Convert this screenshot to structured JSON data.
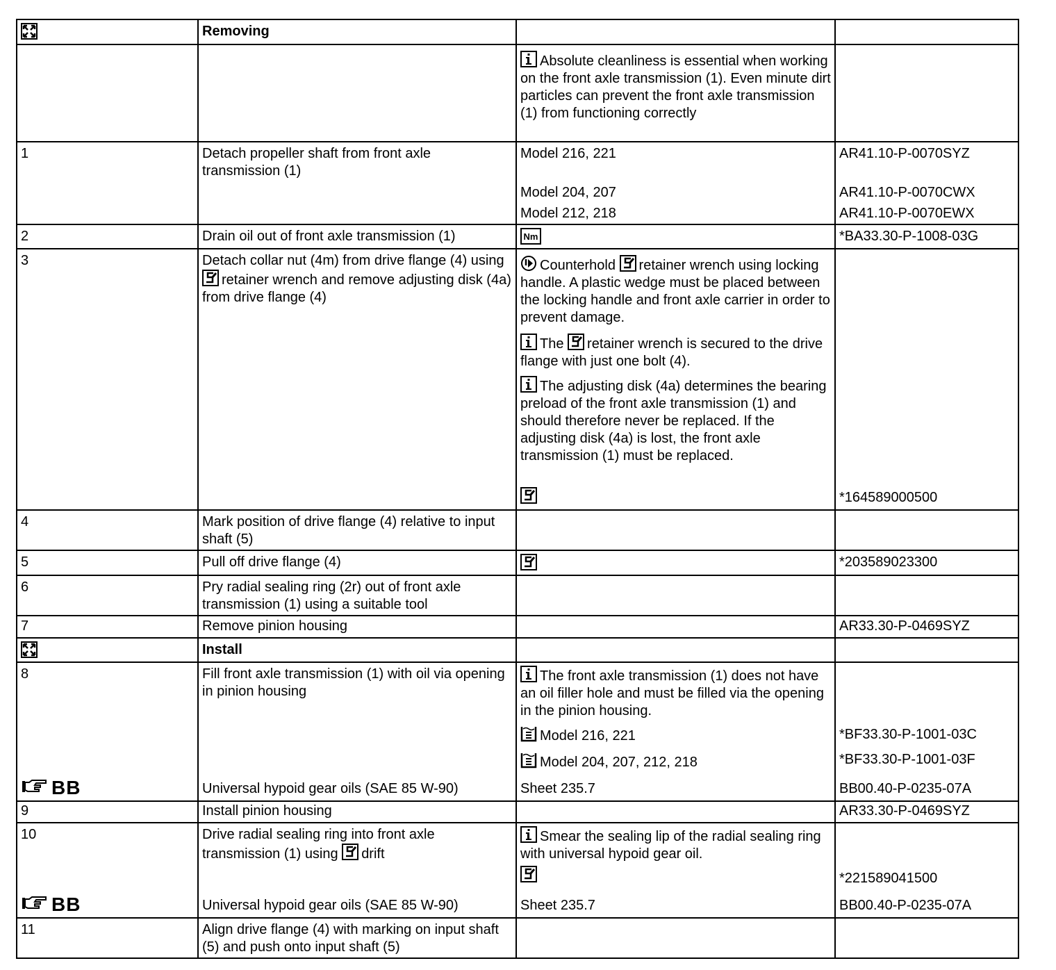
{
  "header": {
    "removing": "Removing",
    "install": "Install"
  },
  "r0": {
    "info": "Absolute cleanliness is essential when working on the front axle transmission (1). Even minute dirt particles can prevent the front axle transmission (1) from functioning correctly"
  },
  "r1": {
    "num": "1",
    "text": "Detach propeller shaft from front axle transmission (1)",
    "m1": "Model 216, 221",
    "m2": "Model 204, 207",
    "m3": "Model 212, 218",
    "ref1": "AR41.10-P-0070SYZ",
    "ref2": "AR41.10-P-0070CWX",
    "ref3": "AR41.10-P-0070EWX"
  },
  "r2": {
    "num": "2",
    "text": "Drain oil out of front axle transmission (1)",
    "ref": "*BA33.30-P-1008-03G"
  },
  "r3": {
    "num": "3",
    "text_a": "Detach collar nut (4m) from drive flange (4) using",
    "text_b": "retainer wrench and remove adjusting disk (4a) from drive flange (4)",
    "warn_a": "Counterhold",
    "warn_b": "retainer wrench using locking handle. A plastic wedge must be placed between the locking handle and front axle carrier in order to prevent damage.",
    "note1_a": "The",
    "note1_b": "retainer wrench is secured to the drive flange with just one bolt (4).",
    "note2": "The adjusting disk (4a) determines the bearing preload of the front axle transmission (1) and should therefore never be replaced. If the adjusting disk (4a) is lost, the front axle transmission (1) must be replaced.",
    "ref": "*164589000500"
  },
  "r4": {
    "num": "4",
    "text": "Mark position of drive flange (4) relative to input shaft (5)"
  },
  "r5": {
    "num": "5",
    "text": "Pull off drive flange (4)",
    "ref": "*203589023300"
  },
  "r6": {
    "num": "6",
    "text": "Pry radial sealing ring (2r) out of front axle transmission (1) using a suitable tool"
  },
  "r7": {
    "num": "7",
    "text": "Remove pinion housing",
    "ref": "AR33.30-P-0469SYZ"
  },
  "r8": {
    "num": "8",
    "text": "Fill front axle transmission (1) with oil via opening in pinion housing",
    "info": "The front axle transmission (1) does not have an oil filler hole and must be filled via the opening in the pinion housing.",
    "m1": "Model 216, 221",
    "m2": "Model 204, 207, 212, 218",
    "ref1": "*BF33.30-P-1001-03C",
    "ref2": "*BF33.30-P-1001-03F",
    "bb": "BB",
    "oil": "Universal hypoid gear oils (SAE 85 W-90)",
    "sheet": "Sheet 235.7",
    "sheetref": "BB00.40-P-0235-07A"
  },
  "r9": {
    "num": "9",
    "text": "Install pinion housing",
    "ref": "AR33.30-P-0469SYZ"
  },
  "r10": {
    "num": "10",
    "text_a": "Drive radial sealing ring into front axle transmission (1) using",
    "text_b": "drift",
    "info": "Smear the sealing lip of the radial sealing ring with universal hypoid gear oil.",
    "ref": "*221589041500",
    "bb": "BB",
    "oil": "Universal hypoid gear oils (SAE 85 W-90)",
    "sheet": "Sheet 235.7",
    "sheetref": "BB00.40-P-0235-07A"
  },
  "r11": {
    "num": "11",
    "text": "Align drive flange (4) with marking on input shaft (5) and push onto input shaft (5)"
  }
}
